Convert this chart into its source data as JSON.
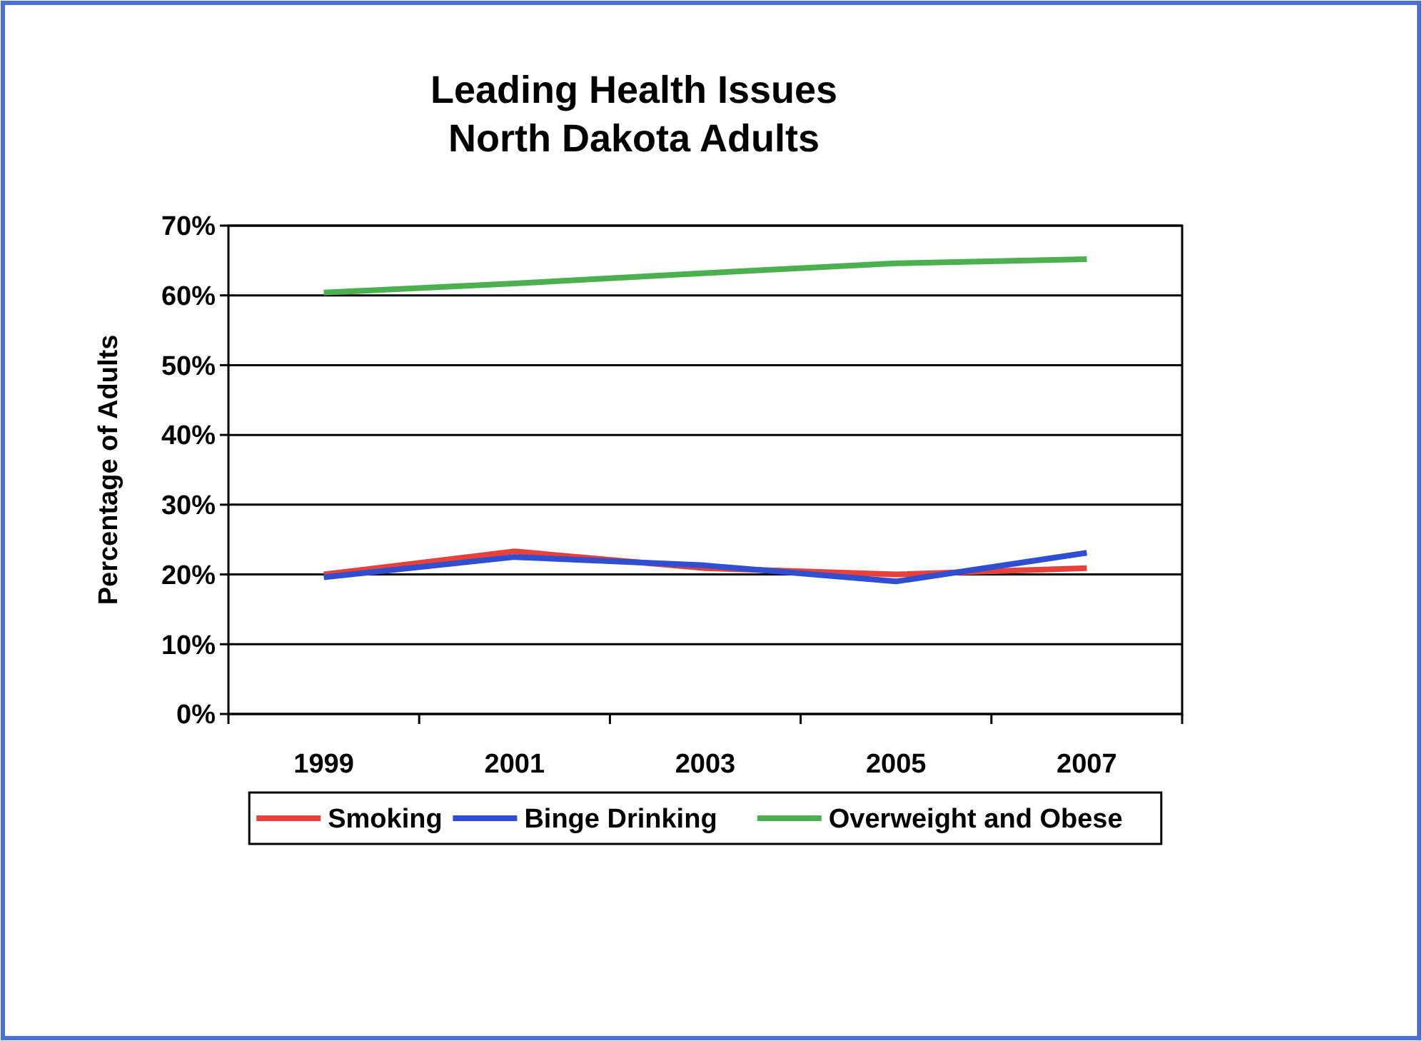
{
  "chart_data": {
    "type": "line",
    "title": "Leading Health Issues\nNorth Dakota Adults",
    "ylabel": "Percentage of Adults",
    "categories": [
      "1999",
      "2001",
      "2003",
      "2005",
      "2007"
    ],
    "series": [
      {
        "name": "Smoking",
        "color": "#e8403a",
        "values": [
          0.2,
          0.233,
          0.209,
          0.2,
          0.209
        ]
      },
      {
        "name": "Binge Drinking",
        "color": "#2f4fd0",
        "values": [
          0.196,
          0.225,
          0.213,
          0.19,
          0.231
        ]
      },
      {
        "name": "Overweight and Obese",
        "color": "#4caf50",
        "values": [
          0.604,
          0.617,
          0.632,
          0.646,
          0.652
        ]
      }
    ],
    "ylim": [
      0,
      0.7
    ],
    "yticks": [
      {
        "value": 0,
        "label": "0%"
      },
      {
        "value": 0.1,
        "label": "10%"
      },
      {
        "value": 0.2,
        "label": "20%"
      },
      {
        "value": 0.3,
        "label": "30%"
      },
      {
        "value": 0.4,
        "label": "40%"
      },
      {
        "value": 0.5,
        "label": "50%"
      },
      {
        "value": 0.6,
        "label": "60%"
      },
      {
        "value": 0.7,
        "label": "70%"
      }
    ],
    "grid": "y",
    "legend": "bottom",
    "marker": "none",
    "line_style": "solid"
  }
}
